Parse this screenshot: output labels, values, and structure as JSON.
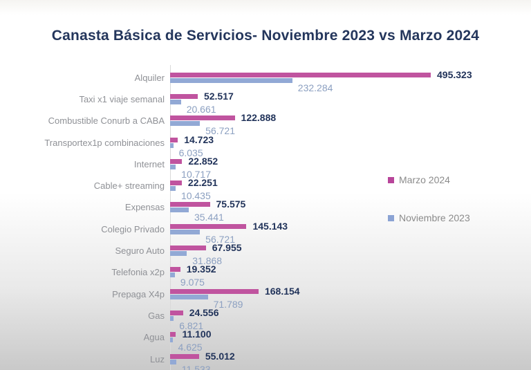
{
  "chart_data": {
    "type": "bar",
    "orientation": "horizontal",
    "title": "Canasta Básica de Servicios- Noviembre 2023 vs Marzo 2024",
    "categories": [
      "Alquiler",
      "Taxi x1 viaje semanal",
      "Combustible Conurb a CABA",
      "Transportex1p combinaciones",
      "Internet",
      "Cable+ streaming",
      "Expensas",
      "Colegio Privado",
      "Seguro Auto",
      "Telefonia x2p",
      "Prepaga X4p",
      "Gas",
      "Agua",
      "Luz"
    ],
    "series": [
      {
        "name": "Marzo 2024",
        "color": "#c0549f",
        "label_color": "#21335a",
        "values": [
          495323,
          52517,
          122888,
          14723,
          22852,
          22251,
          75575,
          145143,
          67955,
          19352,
          168154,
          24556,
          11100,
          55012
        ]
      },
      {
        "name": "Noviembre 2023",
        "color": "#92a9d5",
        "label_color": "#8ca0c1",
        "values": [
          232284,
          20661,
          56721,
          6035,
          10717,
          10435,
          35441,
          56721,
          31868,
          9075,
          71789,
          6821,
          4625,
          11533
        ]
      }
    ],
    "xlim": [
      0,
      495323
    ],
    "value_label_format": "thousands-dot",
    "grid": false,
    "legend_position": "right"
  },
  "legend": {
    "items": [
      {
        "label": "Marzo 2024",
        "color": "#b8459a"
      },
      {
        "label": "Noviembre 2023",
        "color": "#8ba3d4"
      }
    ]
  }
}
